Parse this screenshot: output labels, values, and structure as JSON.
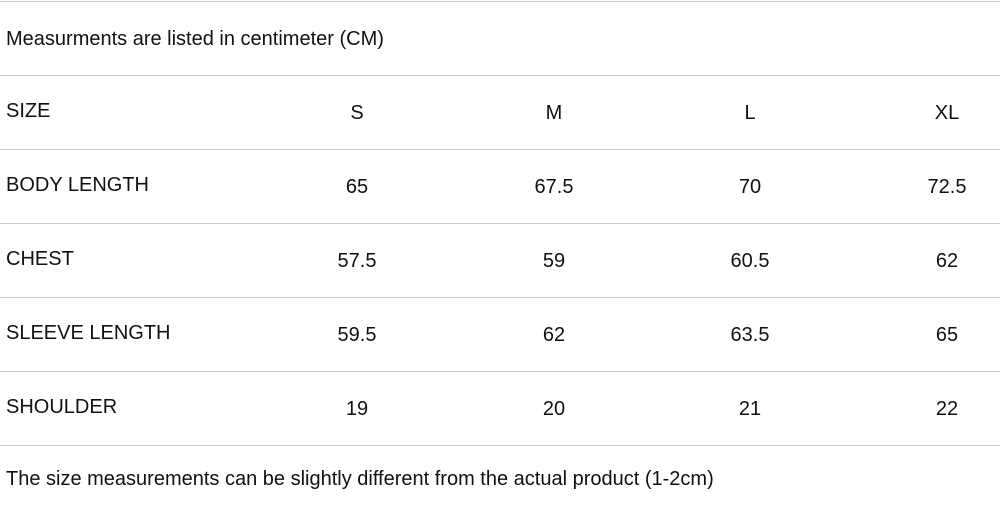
{
  "header": {
    "note": "Measurments are listed in centimeter (CM)"
  },
  "table": {
    "columns": [
      "SIZE",
      "S",
      "M",
      "L",
      "XL"
    ],
    "rows": [
      [
        "BODY LENGTH",
        65,
        67.5,
        70,
        72.5
      ],
      [
        "CHEST",
        57.5,
        59,
        60.5,
        62
      ],
      [
        "SLEEVE LENGTH",
        59.5,
        62,
        63.5,
        65
      ],
      [
        "SHOULDER",
        19,
        20,
        21,
        22
      ]
    ]
  },
  "footer": {
    "note": "The size measurements can be slightly different from the actual product (1-2cm)"
  }
}
